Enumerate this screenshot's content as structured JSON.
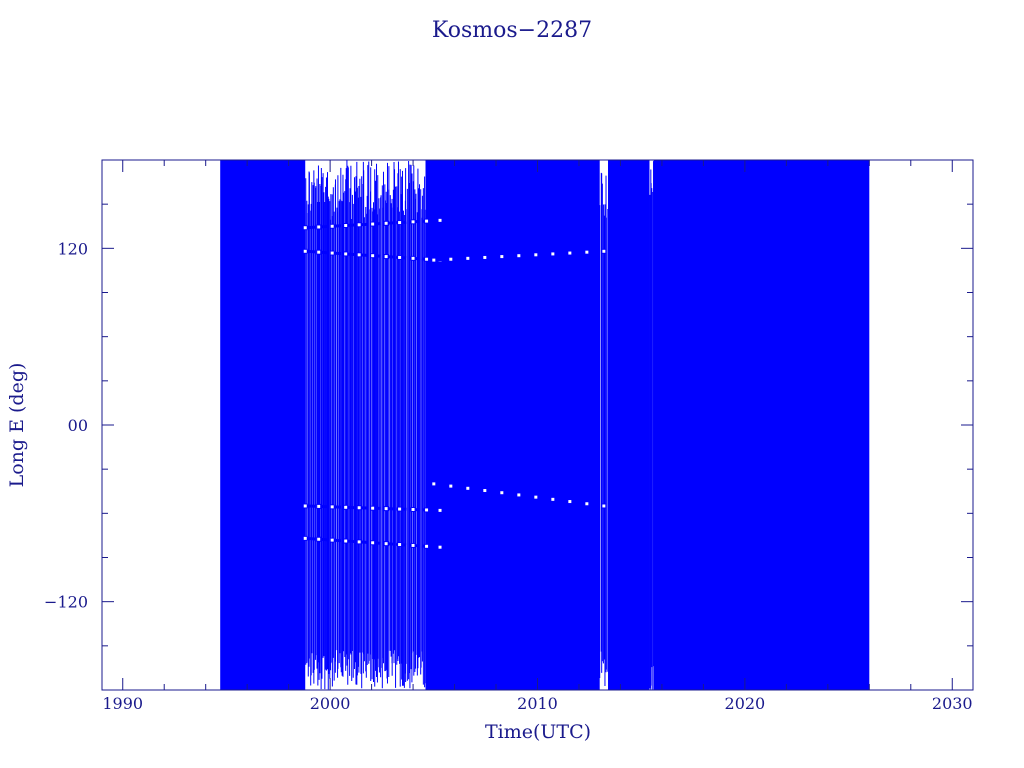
{
  "chart_data": {
    "type": "line",
    "title": "Kosmos−2287",
    "xlabel": "Time(UTC)",
    "ylabel": "Long E (deg)",
    "xlim": [
      1989,
      2031
    ],
    "ylim": [
      -180,
      180
    ],
    "x_ticks": [
      1990,
      2000,
      2010,
      2020,
      2030
    ],
    "x_tick_labels": [
      "1990",
      "2000",
      "2010",
      "2020",
      "2030"
    ],
    "y_ticks": [
      -120,
      0,
      120
    ],
    "y_tick_labels": [
      "−120",
      "00",
      "120"
    ],
    "grid": false,
    "legend": "none",
    "series": [
      {
        "color": "#0000ff",
        "data_start": 1994.7,
        "data_end": 2026.0,
        "dense_fill_intervals": [
          [
            1994.7,
            1998.8
          ],
          [
            2004.6,
            2013.0
          ],
          [
            2013.4,
            2015.4
          ],
          [
            2015.6,
            2026.0
          ]
        ],
        "sparse_intervals": [
          [
            1998.8,
            2004.6
          ],
          [
            2013.0,
            2013.4
          ],
          [
            2015.4,
            2015.6
          ]
        ],
        "drift_tracks": [
          {
            "x": [
              1998.8,
              2005.3
            ],
            "y": [
              134,
              139
            ]
          },
          {
            "x": [
              1998.8,
              2005.3
            ],
            "y": [
              118,
              112
            ]
          },
          {
            "x": [
              1998.8,
              2005.3
            ],
            "y": [
              -55,
              -58
            ]
          },
          {
            "x": [
              1998.8,
              2005.3
            ],
            "y": [
              -77,
              -83
            ]
          },
          {
            "x": [
              2005.0,
              2013.2
            ],
            "y": [
              -40,
              -55
            ]
          },
          {
            "x": [
              2005.0,
              2013.2
            ],
            "y": [
              112,
              118
            ]
          }
        ]
      }
    ]
  }
}
